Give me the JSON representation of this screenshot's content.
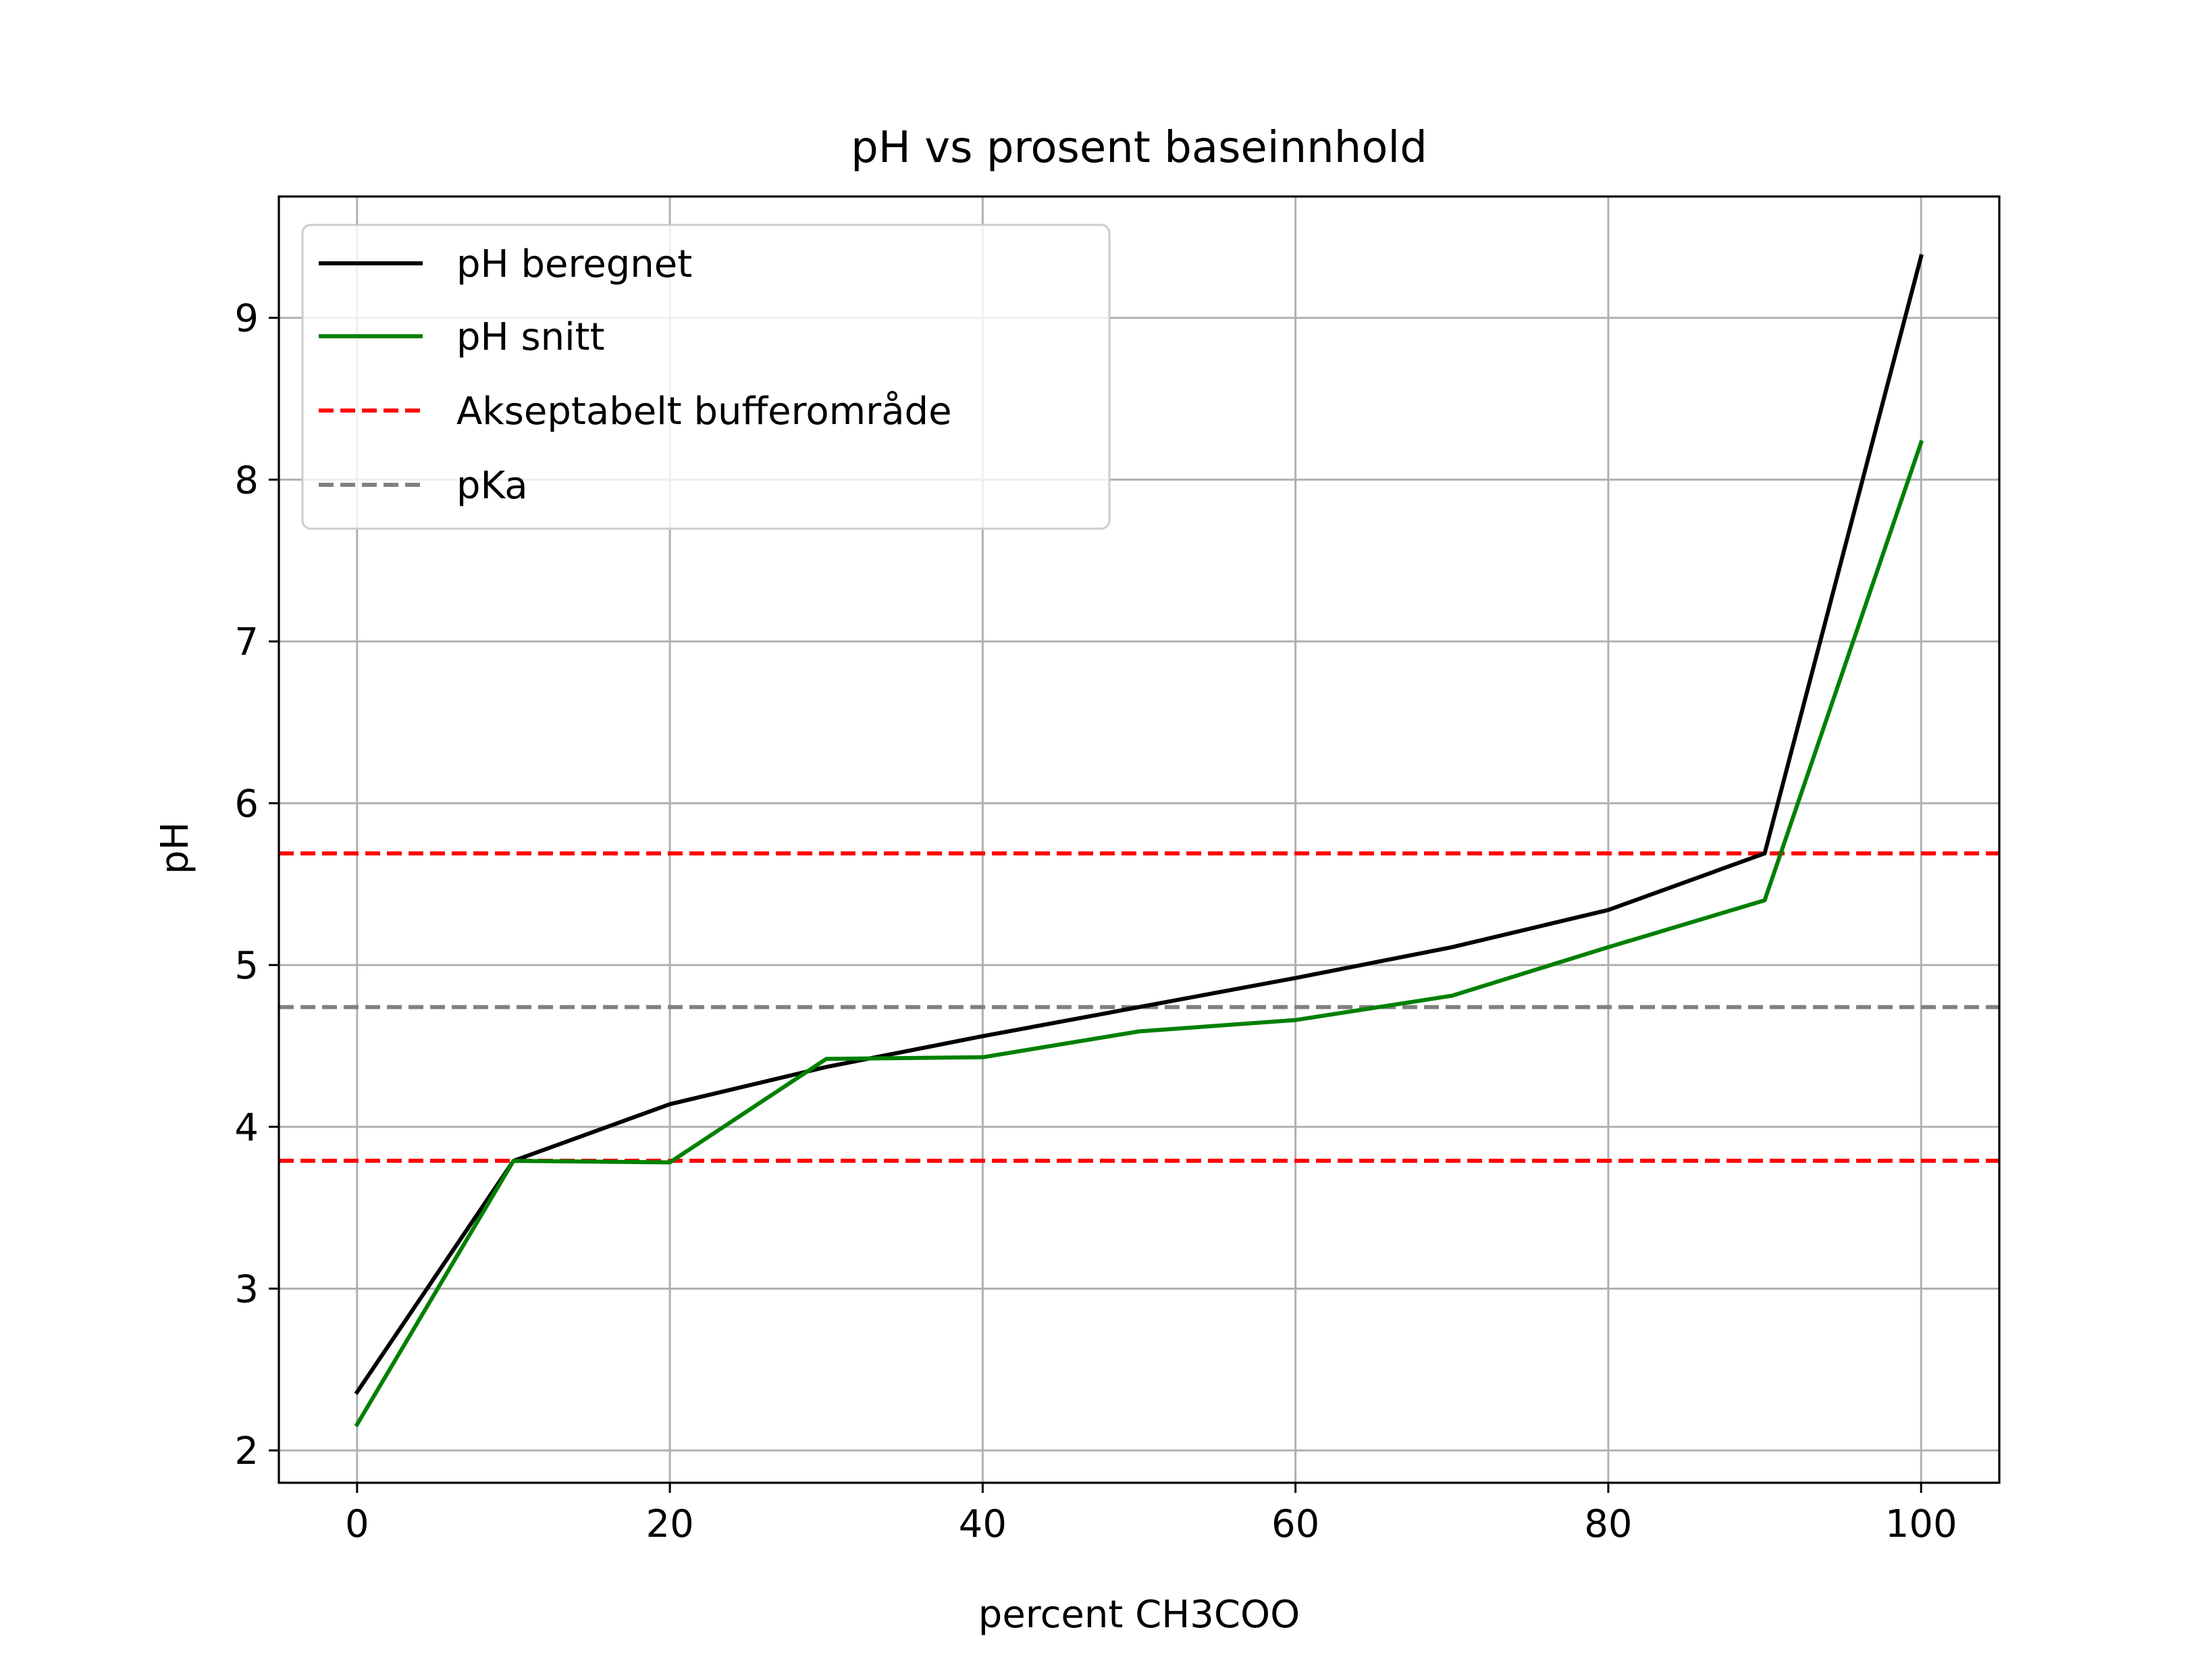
{
  "chart_data": {
    "type": "line",
    "title": "pH vs prosent baseinnhold",
    "xlabel": "percent CH3COO",
    "ylabel": "pH",
    "xlim": [
      -5,
      105
    ],
    "ylim": [
      1.8,
      9.75
    ],
    "xticks": [
      0,
      20,
      40,
      60,
      80,
      100
    ],
    "yticks": [
      2,
      3,
      4,
      5,
      6,
      7,
      8,
      9
    ],
    "grid": true,
    "legend_position": "top-left",
    "series": [
      {
        "name": "pH beregnet",
        "color": "#000000",
        "style": "solid",
        "x": [
          0,
          10,
          20,
          30,
          40,
          50,
          60,
          70,
          80,
          90,
          100
        ],
        "y": [
          2.36,
          3.79,
          4.14,
          4.37,
          4.56,
          4.74,
          4.92,
          5.11,
          5.34,
          5.69,
          9.38
        ]
      },
      {
        "name": "pH snitt",
        "color": "#008000",
        "style": "solid",
        "x": [
          0,
          10,
          20,
          30,
          40,
          50,
          60,
          70,
          80,
          90,
          100
        ],
        "y": [
          2.16,
          3.79,
          3.78,
          4.42,
          4.43,
          4.59,
          4.66,
          4.81,
          5.11,
          5.4,
          8.23
        ]
      },
      {
        "name": "Akseptabelt bufferområde",
        "color": "#ff0000",
        "style": "dashed",
        "hlines": [
          3.79,
          5.69
        ]
      },
      {
        "name": "pKa",
        "color": "#808080",
        "style": "dashed",
        "hlines": [
          4.74
        ]
      }
    ]
  }
}
